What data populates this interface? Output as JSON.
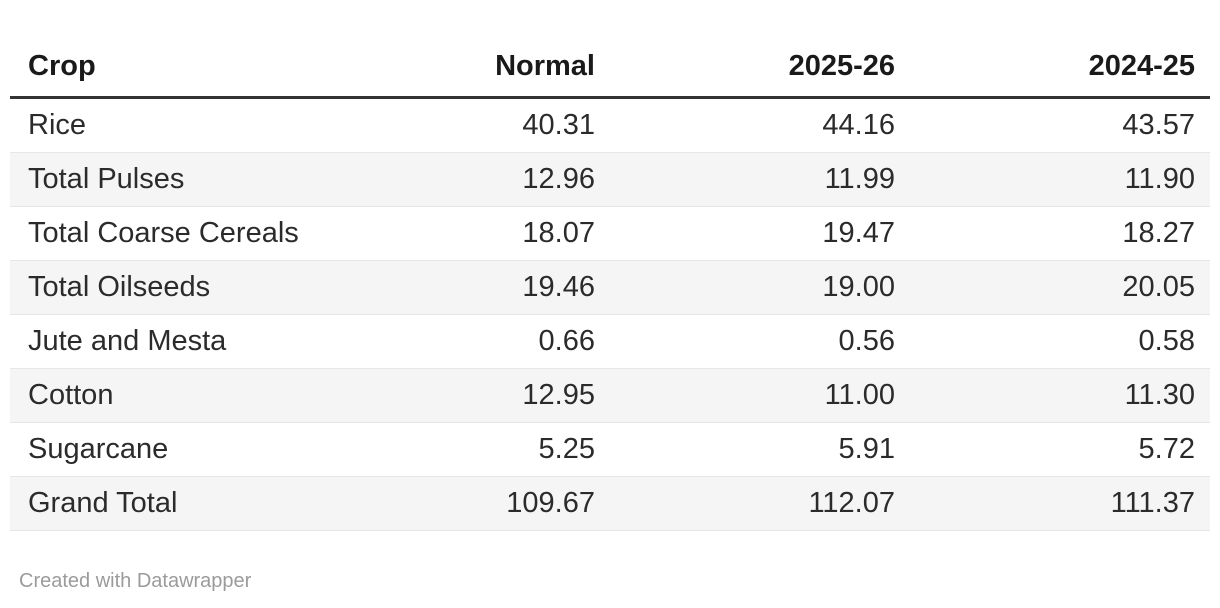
{
  "table": {
    "columns": [
      "Crop",
      "Normal",
      "2025-26",
      "2024-25"
    ],
    "rows": [
      [
        "Rice",
        "40.31",
        "44.16",
        "43.57"
      ],
      [
        "Total Pulses",
        "12.96",
        "11.99",
        "11.90"
      ],
      [
        "Total Coarse Cereals",
        "18.07",
        "19.47",
        "18.27"
      ],
      [
        "Total Oilseeds",
        "19.46",
        "19.00",
        "20.05"
      ],
      [
        "Jute and Mesta",
        "0.66",
        "0.56",
        "0.58"
      ],
      [
        "Cotton",
        "12.95",
        "11.00",
        "11.30"
      ],
      [
        "Sugarcane",
        "5.25",
        "5.91",
        "5.72"
      ],
      [
        "Grand Total",
        "109.67",
        "112.07",
        "111.37"
      ]
    ]
  },
  "footer": {
    "credit": "Created with Datawrapper"
  },
  "colors": {
    "header_rule": "#333333",
    "row_stripe": "#f5f5f5",
    "row_divider": "#e6e6e6",
    "header_text": "#1a1a1a",
    "body_text": "#2b2b2b",
    "footer_text": "#9b9b9b",
    "background": "#ffffff"
  },
  "chart_data": {
    "type": "table",
    "columns": [
      "Crop",
      "Normal",
      "2025-26",
      "2024-25"
    ],
    "rows": [
      [
        "Rice",
        40.31,
        44.16,
        43.57
      ],
      [
        "Total Pulses",
        12.96,
        11.99,
        11.9
      ],
      [
        "Total Coarse Cereals",
        18.07,
        19.47,
        18.27
      ],
      [
        "Total Oilseeds",
        19.46,
        19.0,
        20.05
      ],
      [
        "Jute and Mesta",
        0.66,
        0.56,
        0.58
      ],
      [
        "Cotton",
        12.95,
        11.0,
        11.3
      ],
      [
        "Sugarcane",
        5.25,
        5.91,
        5.72
      ],
      [
        "Grand Total",
        109.67,
        112.07,
        111.37
      ]
    ],
    "layout_hints": {
      "striped_rows": true,
      "numeric_columns_right_aligned": true,
      "credit_line": "Created with Datawrapper"
    }
  }
}
